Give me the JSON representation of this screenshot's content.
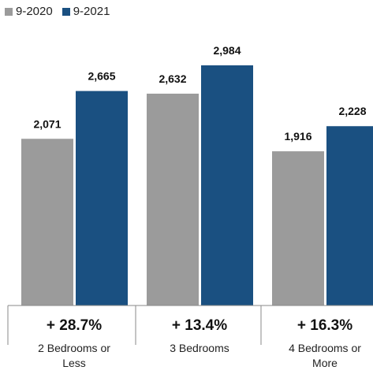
{
  "colors": {
    "series_2020": "#9b9b9b",
    "series_2021": "#1a5081",
    "axis": "#888888"
  },
  "legend": [
    {
      "label": "9-2020"
    },
    {
      "label": "9-2021"
    }
  ],
  "chart_data": {
    "type": "bar",
    "title": "",
    "xlabel": "",
    "ylabel": "",
    "ylim": [
      0,
      3600
    ],
    "grid": false,
    "legend_position": "top-left",
    "categories": [
      [
        "2 Bedrooms or",
        "Less"
      ],
      [
        "3 Bedrooms"
      ],
      [
        "4 Bedrooms or",
        "More"
      ]
    ],
    "series": [
      {
        "name": "9-2020",
        "values": [
          2071,
          2632,
          1916
        ],
        "labels": [
          "2,071",
          "2,632",
          "1,916"
        ]
      },
      {
        "name": "9-2021",
        "values": [
          2665,
          2984,
          2228
        ],
        "labels": [
          "2,665",
          "2,984",
          "2,228"
        ]
      }
    ],
    "annotations": [
      "+ 28.7%",
      "+ 13.4%",
      "+ 16.3%"
    ]
  }
}
